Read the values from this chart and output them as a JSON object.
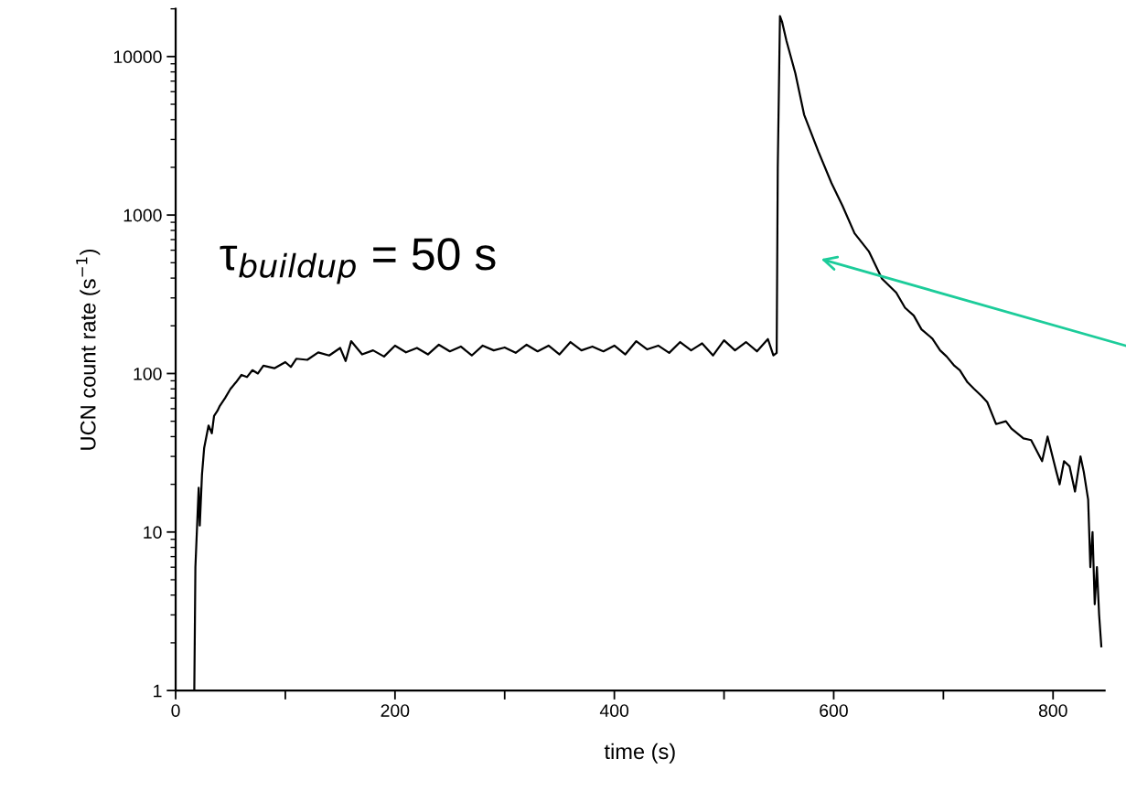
{
  "chart_data": {
    "type": "line",
    "xlabel": "time (s)",
    "ylabel": "UCN count rate (s$^{−1}$)",
    "log": "y",
    "grid": false,
    "marker": "none",
    "line_style": "solid",
    "xlim": [
      0,
      847
    ],
    "ylim": [
      1,
      20000
    ],
    "xticks": [
      0,
      {
        "value": 100,
        "label": null
      },
      200,
      {
        "value": 300,
        "label": null
      },
      400,
      {
        "value": 500,
        "label": null
      },
      600,
      {
        "value": 700,
        "label": null
      },
      800
    ],
    "yticks": [
      1,
      10,
      100,
      1000,
      10000
    ],
    "annotations": [
      "τ$_{buildup}$ = 50 s"
    ],
    "series": [
      {
        "color": "#000000",
        "x": [
          17,
          18,
          20,
          21,
          22,
          24,
          26,
          28,
          30,
          33,
          35,
          38,
          40,
          45,
          50,
          55,
          60,
          65,
          70,
          75,
          80,
          90,
          100,
          105,
          110,
          120,
          130,
          140,
          150,
          155,
          160,
          170,
          180,
          190,
          200,
          210,
          220,
          230,
          240,
          250,
          260,
          270,
          280,
          290,
          300,
          310,
          320,
          330,
          340,
          350,
          360,
          370,
          380,
          390,
          400,
          410,
          420,
          430,
          440,
          450,
          460,
          470,
          480,
          490,
          500,
          510,
          520,
          530,
          540,
          545,
          548,
          549,
          551,
          553,
          557,
          565,
          573,
          586,
          598,
          608,
          619,
          632,
          644,
          657,
          665,
          673,
          680,
          690,
          697,
          703,
          710,
          715,
          722,
          728,
          735,
          740,
          748,
          757,
          762,
          773,
          780,
          790,
          795,
          803,
          806,
          810,
          815,
          820,
          825,
          828,
          832,
          834,
          836,
          838,
          840,
          842,
          844
        ],
        "values": [
          1,
          6,
          13,
          19,
          11,
          23,
          34,
          40,
          47,
          42,
          54,
          58,
          62,
          70,
          80,
          88,
          98,
          95,
          105,
          100,
          112,
          108,
          118,
          110,
          124,
          122,
          136,
          130,
          145,
          120,
          160,
          132,
          140,
          128,
          150,
          136,
          145,
          132,
          152,
          138,
          148,
          130,
          150,
          140,
          146,
          135,
          152,
          138,
          150,
          132,
          158,
          140,
          148,
          138,
          150,
          132,
          160,
          142,
          150,
          135,
          158,
          140,
          155,
          130,
          162,
          140,
          158,
          138,
          165,
          130,
          135,
          2000,
          18000,
          16500,
          12500,
          7850,
          4300,
          2520,
          1590,
          1145,
          767,
          590,
          397,
          324,
          260,
          232,
          190,
          166,
          140,
          128,
          112,
          105,
          88,
          80,
          72,
          66,
          48,
          50,
          45,
          39,
          38,
          28,
          40,
          24,
          20,
          28,
          26,
          18,
          30,
          24,
          16,
          6,
          10,
          3.5,
          6,
          3,
          1.9
        ]
      }
    ]
  }
}
